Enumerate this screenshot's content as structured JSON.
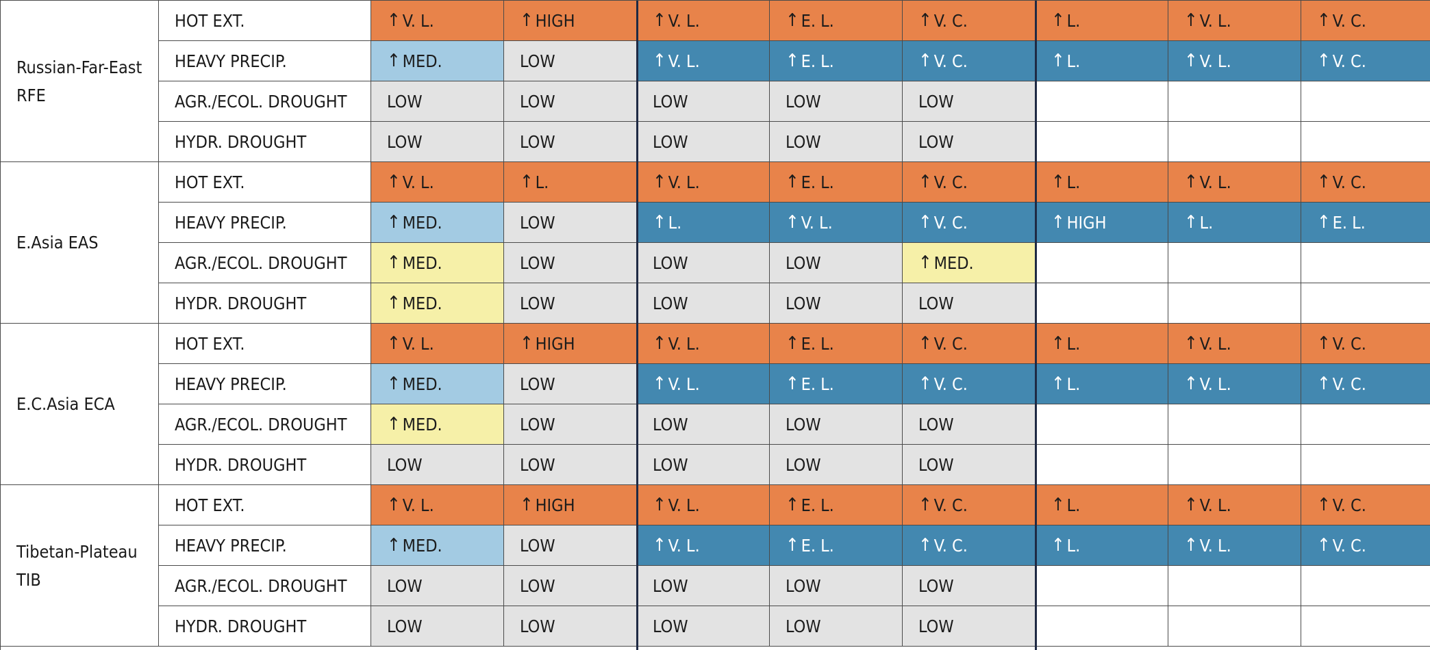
{
  "arrow_glyph": "↑",
  "colors": {
    "hot_extremes": "#e8834a",
    "heavy_precip": "#4388b0",
    "medium_precip": "#a3cbe3",
    "low": "#e3e3e3",
    "medium_drought": "#f6f0a8",
    "blank": "#ffffff",
    "column_divider": "#1f2a44"
  },
  "regions": [
    {
      "name": "Russian-Far-East RFE",
      "rows": [
        {
          "hazard": "HOT EXT.",
          "cells": [
            {
              "t": "V. L.",
              "a": true,
              "s": "hot"
            },
            {
              "t": "HIGH",
              "a": true,
              "s": "hot"
            },
            {
              "t": "V. L.",
              "a": true,
              "s": "hot"
            },
            {
              "t": "E. L.",
              "a": true,
              "s": "hot"
            },
            {
              "t": "V. C.",
              "a": true,
              "s": "hot"
            },
            {
              "t": "L.",
              "a": true,
              "s": "hot"
            },
            {
              "t": "V. L.",
              "a": true,
              "s": "hot"
            },
            {
              "t": "V. C.",
              "a": true,
              "s": "hot"
            }
          ]
        },
        {
          "hazard": "HEAVY PRECIP.",
          "cells": [
            {
              "t": "MED.",
              "a": true,
              "s": "lightblue"
            },
            {
              "t": "LOW",
              "a": false,
              "s": "low"
            },
            {
              "t": "V. L.",
              "a": true,
              "s": "precip"
            },
            {
              "t": "E. L.",
              "a": true,
              "s": "precip"
            },
            {
              "t": "V. C.",
              "a": true,
              "s": "precip"
            },
            {
              "t": "L.",
              "a": true,
              "s": "precip"
            },
            {
              "t": "V. L.",
              "a": true,
              "s": "precip"
            },
            {
              "t": "V. C.",
              "a": true,
              "s": "precip"
            }
          ]
        },
        {
          "hazard": "AGR./ECOL. DROUGHT",
          "cells": [
            {
              "t": "LOW",
              "a": false,
              "s": "low"
            },
            {
              "t": "LOW",
              "a": false,
              "s": "low"
            },
            {
              "t": "LOW",
              "a": false,
              "s": "low"
            },
            {
              "t": "LOW",
              "a": false,
              "s": "low"
            },
            {
              "t": "LOW",
              "a": false,
              "s": "low"
            },
            {
              "t": "",
              "a": false,
              "s": "empty"
            },
            {
              "t": "",
              "a": false,
              "s": "empty"
            },
            {
              "t": "",
              "a": false,
              "s": "empty"
            }
          ]
        },
        {
          "hazard": "HYDR. DROUGHT",
          "cells": [
            {
              "t": "LOW",
              "a": false,
              "s": "low"
            },
            {
              "t": "LOW",
              "a": false,
              "s": "low"
            },
            {
              "t": "LOW",
              "a": false,
              "s": "low"
            },
            {
              "t": "LOW",
              "a": false,
              "s": "low"
            },
            {
              "t": "LOW",
              "a": false,
              "s": "low"
            },
            {
              "t": "",
              "a": false,
              "s": "empty"
            },
            {
              "t": "",
              "a": false,
              "s": "empty"
            },
            {
              "t": "",
              "a": false,
              "s": "empty"
            }
          ]
        }
      ]
    },
    {
      "name": "E.Asia EAS",
      "rows": [
        {
          "hazard": "HOT EXT.",
          "cells": [
            {
              "t": "V. L.",
              "a": true,
              "s": "hot"
            },
            {
              "t": "L.",
              "a": true,
              "s": "hot"
            },
            {
              "t": "V. L.",
              "a": true,
              "s": "hot"
            },
            {
              "t": "E. L.",
              "a": true,
              "s": "hot"
            },
            {
              "t": "V. C.",
              "a": true,
              "s": "hot"
            },
            {
              "t": "L.",
              "a": true,
              "s": "hot"
            },
            {
              "t": "V. L.",
              "a": true,
              "s": "hot"
            },
            {
              "t": "V. C.",
              "a": true,
              "s": "hot"
            }
          ]
        },
        {
          "hazard": "HEAVY PRECIP.",
          "cells": [
            {
              "t": "MED.",
              "a": true,
              "s": "lightblue"
            },
            {
              "t": "LOW",
              "a": false,
              "s": "low"
            },
            {
              "t": "L.",
              "a": true,
              "s": "precip"
            },
            {
              "t": "V. L.",
              "a": true,
              "s": "precip"
            },
            {
              "t": "V. C.",
              "a": true,
              "s": "precip"
            },
            {
              "t": "HIGH",
              "a": true,
              "s": "precip"
            },
            {
              "t": "L.",
              "a": true,
              "s": "precip"
            },
            {
              "t": "E. L.",
              "a": true,
              "s": "precip"
            }
          ]
        },
        {
          "hazard": "AGR./ECOL. DROUGHT",
          "cells": [
            {
              "t": "MED.",
              "a": true,
              "s": "yellow"
            },
            {
              "t": "LOW",
              "a": false,
              "s": "low"
            },
            {
              "t": "LOW",
              "a": false,
              "s": "low"
            },
            {
              "t": "LOW",
              "a": false,
              "s": "low"
            },
            {
              "t": "MED.",
              "a": true,
              "s": "yellow"
            },
            {
              "t": "",
              "a": false,
              "s": "empty"
            },
            {
              "t": "",
              "a": false,
              "s": "empty"
            },
            {
              "t": "",
              "a": false,
              "s": "empty"
            }
          ]
        },
        {
          "hazard": "HYDR. DROUGHT",
          "cells": [
            {
              "t": "MED.",
              "a": true,
              "s": "yellow"
            },
            {
              "t": "LOW",
              "a": false,
              "s": "low"
            },
            {
              "t": "LOW",
              "a": false,
              "s": "low"
            },
            {
              "t": "LOW",
              "a": false,
              "s": "low"
            },
            {
              "t": "LOW",
              "a": false,
              "s": "low"
            },
            {
              "t": "",
              "a": false,
              "s": "empty"
            },
            {
              "t": "",
              "a": false,
              "s": "empty"
            },
            {
              "t": "",
              "a": false,
              "s": "empty"
            }
          ]
        }
      ]
    },
    {
      "name": "E.C.Asia ECA",
      "rows": [
        {
          "hazard": "HOT EXT.",
          "cells": [
            {
              "t": "V. L.",
              "a": true,
              "s": "hot"
            },
            {
              "t": "HIGH",
              "a": true,
              "s": "hot"
            },
            {
              "t": "V. L.",
              "a": true,
              "s": "hot"
            },
            {
              "t": "E. L.",
              "a": true,
              "s": "hot"
            },
            {
              "t": "V. C.",
              "a": true,
              "s": "hot"
            },
            {
              "t": "L.",
              "a": true,
              "s": "hot"
            },
            {
              "t": "V. L.",
              "a": true,
              "s": "hot"
            },
            {
              "t": "V. C.",
              "a": true,
              "s": "hot"
            }
          ]
        },
        {
          "hazard": "HEAVY PRECIP.",
          "cells": [
            {
              "t": "MED.",
              "a": true,
              "s": "lightblue"
            },
            {
              "t": "LOW",
              "a": false,
              "s": "low"
            },
            {
              "t": "V. L.",
              "a": true,
              "s": "precip"
            },
            {
              "t": "E. L.",
              "a": true,
              "s": "precip"
            },
            {
              "t": "V. C.",
              "a": true,
              "s": "precip"
            },
            {
              "t": "L.",
              "a": true,
              "s": "precip"
            },
            {
              "t": "V. L.",
              "a": true,
              "s": "precip"
            },
            {
              "t": "V. C.",
              "a": true,
              "s": "precip"
            }
          ]
        },
        {
          "hazard": "AGR./ECOL. DROUGHT",
          "cells": [
            {
              "t": "MED.",
              "a": true,
              "s": "yellow"
            },
            {
              "t": "LOW",
              "a": false,
              "s": "low"
            },
            {
              "t": "LOW",
              "a": false,
              "s": "low"
            },
            {
              "t": "LOW",
              "a": false,
              "s": "low"
            },
            {
              "t": "LOW",
              "a": false,
              "s": "low"
            },
            {
              "t": "",
              "a": false,
              "s": "empty"
            },
            {
              "t": "",
              "a": false,
              "s": "empty"
            },
            {
              "t": "",
              "a": false,
              "s": "empty"
            }
          ]
        },
        {
          "hazard": "HYDR. DROUGHT",
          "cells": [
            {
              "t": "LOW",
              "a": false,
              "s": "low"
            },
            {
              "t": "LOW",
              "a": false,
              "s": "low"
            },
            {
              "t": "LOW",
              "a": false,
              "s": "low"
            },
            {
              "t": "LOW",
              "a": false,
              "s": "low"
            },
            {
              "t": "LOW",
              "a": false,
              "s": "low"
            },
            {
              "t": "",
              "a": false,
              "s": "empty"
            },
            {
              "t": "",
              "a": false,
              "s": "empty"
            },
            {
              "t": "",
              "a": false,
              "s": "empty"
            }
          ]
        }
      ]
    },
    {
      "name": "Tibetan-Plateau TIB",
      "rows": [
        {
          "hazard": "HOT EXT.",
          "cells": [
            {
              "t": "V. L.",
              "a": true,
              "s": "hot"
            },
            {
              "t": "HIGH",
              "a": true,
              "s": "hot"
            },
            {
              "t": "V. L.",
              "a": true,
              "s": "hot"
            },
            {
              "t": "E. L.",
              "a": true,
              "s": "hot"
            },
            {
              "t": "V. C.",
              "a": true,
              "s": "hot"
            },
            {
              "t": "L.",
              "a": true,
              "s": "hot"
            },
            {
              "t": "V. L.",
              "a": true,
              "s": "hot"
            },
            {
              "t": "V. C.",
              "a": true,
              "s": "hot"
            }
          ]
        },
        {
          "hazard": "HEAVY PRECIP.",
          "cells": [
            {
              "t": "MED.",
              "a": true,
              "s": "lightblue"
            },
            {
              "t": "LOW",
              "a": false,
              "s": "low"
            },
            {
              "t": "V. L.",
              "a": true,
              "s": "precip"
            },
            {
              "t": "E. L.",
              "a": true,
              "s": "precip"
            },
            {
              "t": "V. C.",
              "a": true,
              "s": "precip"
            },
            {
              "t": "L.",
              "a": true,
              "s": "precip"
            },
            {
              "t": "V. L.",
              "a": true,
              "s": "precip"
            },
            {
              "t": "V. C.",
              "a": true,
              "s": "precip"
            }
          ]
        },
        {
          "hazard": "AGR./ECOL. DROUGHT",
          "cells": [
            {
              "t": "LOW",
              "a": false,
              "s": "low"
            },
            {
              "t": "LOW",
              "a": false,
              "s": "low"
            },
            {
              "t": "LOW",
              "a": false,
              "s": "low"
            },
            {
              "t": "LOW",
              "a": false,
              "s": "low"
            },
            {
              "t": "LOW",
              "a": false,
              "s": "low"
            },
            {
              "t": "",
              "a": false,
              "s": "empty"
            },
            {
              "t": "",
              "a": false,
              "s": "empty"
            },
            {
              "t": "",
              "a": false,
              "s": "empty"
            }
          ]
        },
        {
          "hazard": "HYDR. DROUGHT",
          "cells": [
            {
              "t": "LOW",
              "a": false,
              "s": "low"
            },
            {
              "t": "LOW",
              "a": false,
              "s": "low"
            },
            {
              "t": "LOW",
              "a": false,
              "s": "low"
            },
            {
              "t": "LOW",
              "a": false,
              "s": "low"
            },
            {
              "t": "LOW",
              "a": false,
              "s": "low"
            },
            {
              "t": "",
              "a": false,
              "s": "empty"
            },
            {
              "t": "",
              "a": false,
              "s": "empty"
            },
            {
              "t": "",
              "a": false,
              "s": "empty"
            }
          ]
        }
      ]
    }
  ]
}
